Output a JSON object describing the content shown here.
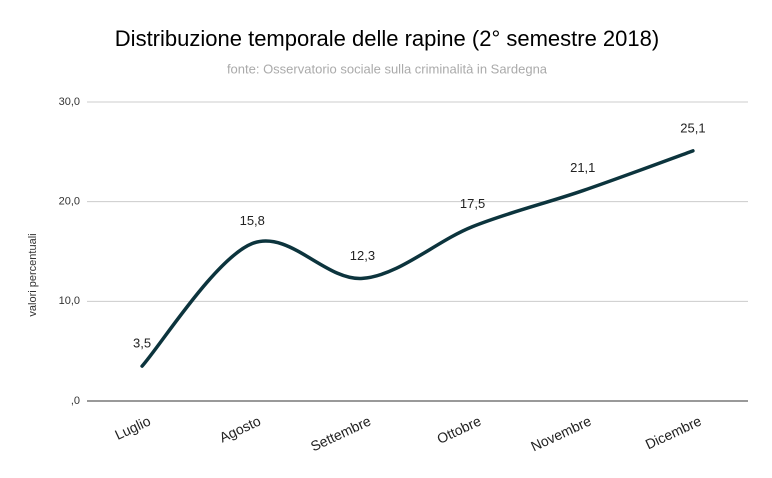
{
  "chart_data": {
    "type": "line",
    "title": "Distribuzione temporale delle rapine  (2° semestre 2018)",
    "subtitle": "fonte: Osservatorio sociale sulla criminalità in Sardegna",
    "y_label": "valori percentuali",
    "categories": [
      "Luglio",
      "Agosto",
      "Settembre",
      "Ottobre",
      "Novembre",
      "Dicembre"
    ],
    "values": [
      3.5,
      15.8,
      12.3,
      17.5,
      21.1,
      25.1
    ],
    "value_labels": [
      "3,5",
      "15,8",
      "12,3",
      "17,5",
      "21,1",
      "25,1"
    ],
    "color": "#0c343d",
    "ylim": [
      0,
      30
    ],
    "yticks": [
      {
        "value": 0,
        "label": ",0"
      },
      {
        "value": 10,
        "label": "10,0"
      },
      {
        "value": 20,
        "label": "20,0"
      },
      {
        "value": 30,
        "label": "30,0"
      }
    ],
    "grid": true
  }
}
